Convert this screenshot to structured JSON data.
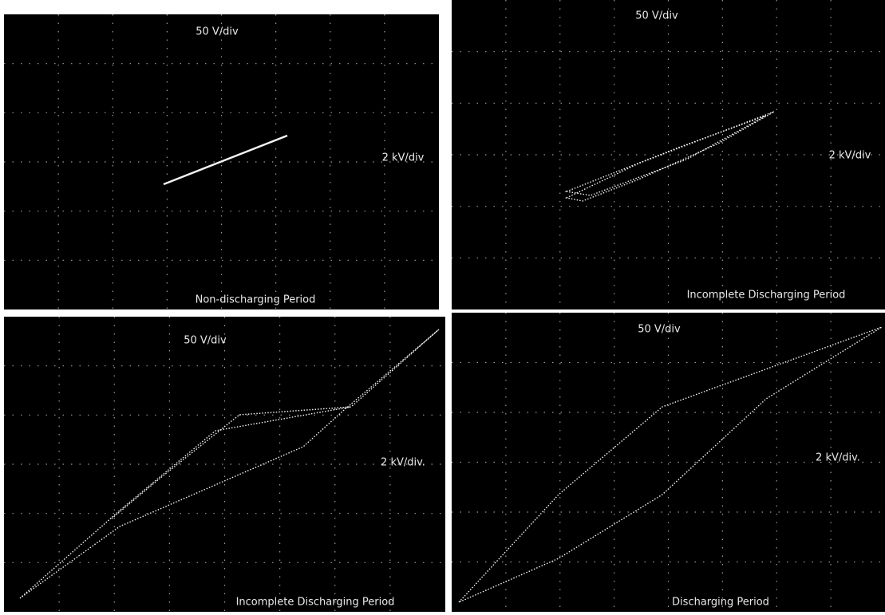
{
  "panels": [
    {
      "y_scale": "50 V/div",
      "x_scale": "2 kV/div",
      "caption": "Non-discharging Period"
    },
    {
      "y_scale": "50 V/div",
      "x_scale": "2 kV/div",
      "caption": "Incomplete Discharging Period"
    },
    {
      "y_scale": "50 V/div",
      "x_scale": "2 kV/div.",
      "caption": "Incomplete Discharging Period"
    },
    {
      "y_scale": "50 V/div",
      "x_scale": "2 kV/div.",
      "caption": "Discharging Period"
    }
  ]
}
